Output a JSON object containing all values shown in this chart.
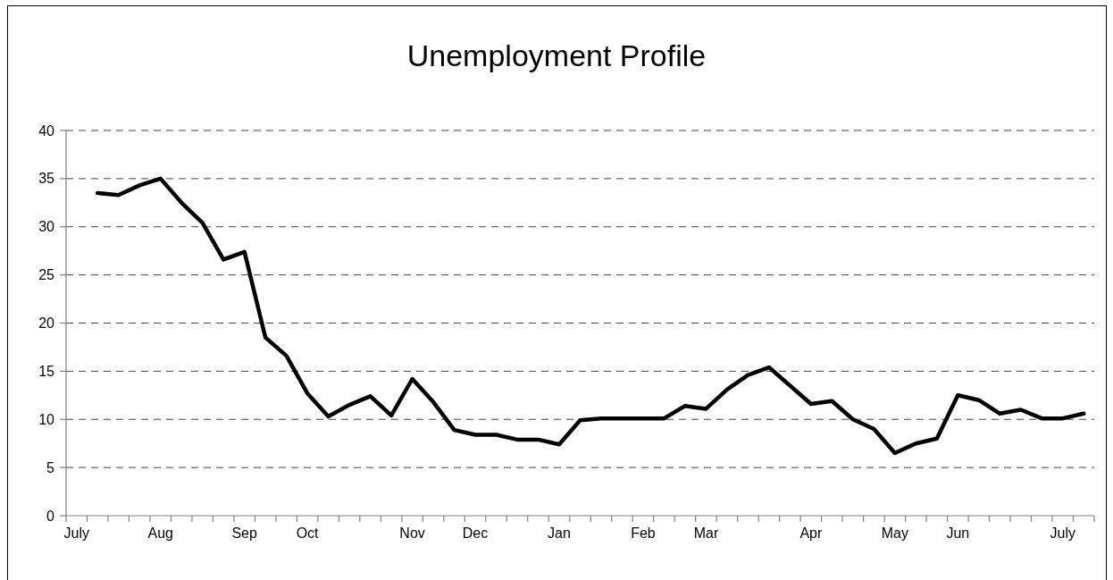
{
  "chart_data": {
    "type": "line",
    "title": "Unemployment Profile",
    "categories": [
      "July",
      null,
      null,
      null,
      "Aug",
      null,
      null,
      null,
      "Sep",
      null,
      null,
      "Oct",
      null,
      null,
      null,
      null,
      "Nov",
      null,
      null,
      "Dec",
      null,
      null,
      null,
      "Jan",
      null,
      null,
      null,
      "Feb",
      null,
      null,
      "Mar",
      null,
      null,
      null,
      null,
      "Apr",
      null,
      null,
      null,
      "May",
      null,
      null,
      "Jun",
      null,
      null,
      null,
      null,
      "July",
      null
    ],
    "series": [
      {
        "color": "#000000",
        "values": [
          null,
          33.5,
          33.3,
          34.3,
          35,
          32.5,
          30.4,
          26.6,
          27.4,
          18.5,
          16.6,
          12.7,
          10.3,
          11.5,
          12.4,
          10.4,
          14.2,
          11.8,
          8.9,
          8.4,
          8.4,
          7.9,
          7.9,
          7.4,
          9.9,
          10.1,
          10.1,
          10.1,
          10.1,
          11.4,
          11.1,
          13.1,
          14.6,
          15.4,
          13.5,
          11.6,
          11.9,
          10,
          9,
          6.5,
          7.5,
          8,
          12.5,
          12,
          10.6,
          11,
          10.1,
          10.1,
          10.6
        ]
      }
    ],
    "ylim": [
      0,
      40
    ],
    "yticks": [
      0,
      5,
      10,
      15,
      20,
      25,
      30,
      35,
      40
    ],
    "grid": "y",
    "line_style": "solid"
  }
}
